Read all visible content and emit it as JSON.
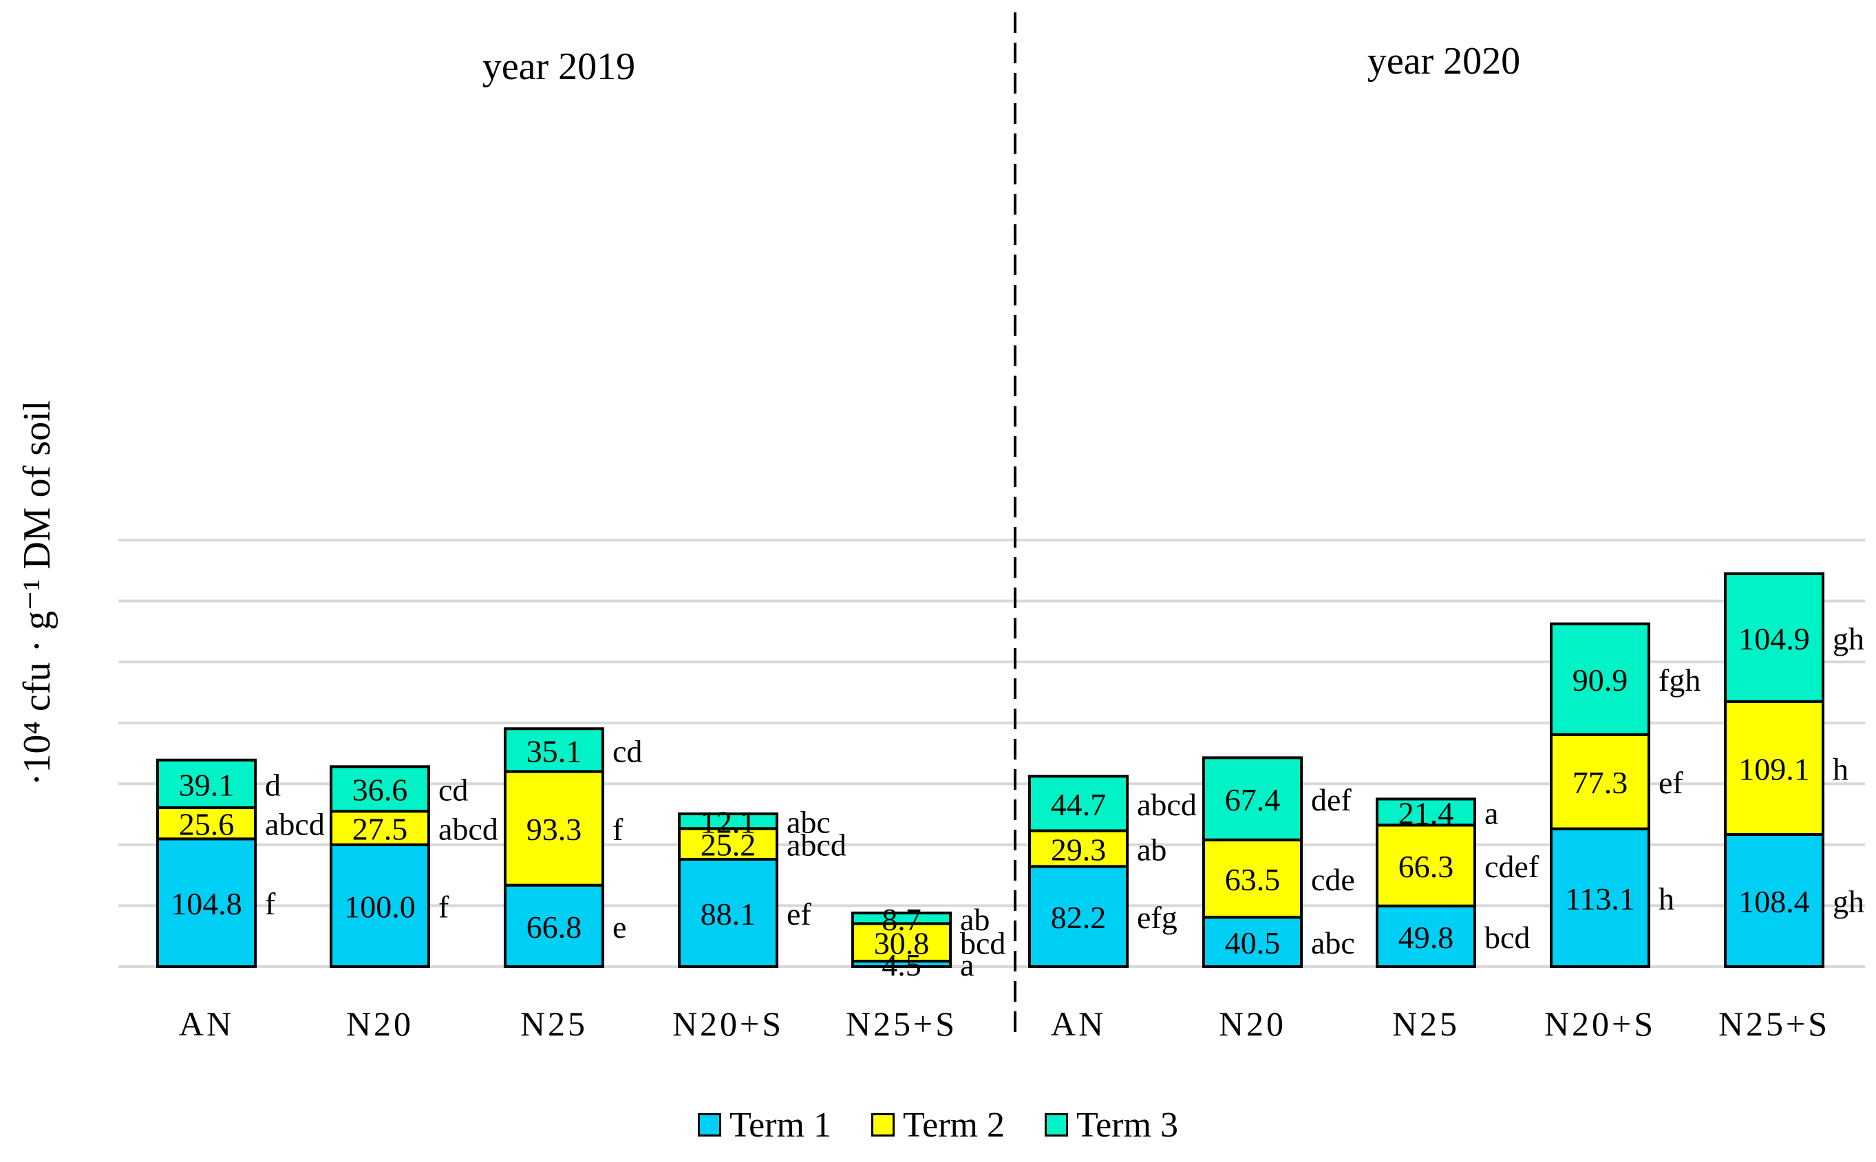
{
  "colors": {
    "term1": "#00CFF5",
    "term2": "#FFFF00",
    "term3": "#00F2C6",
    "grid": "#D9D9D9",
    "outline": "#000000"
  },
  "chart_data": {
    "type": "bar",
    "stacked": true,
    "title": "",
    "ylabel": "·10⁴ cfu · g⁻¹ DM of soil",
    "xlabel": "",
    "ylim": [
      0,
      350
    ],
    "grid": true,
    "legend_position": "bottom",
    "groups": [
      {
        "label": "year 2019",
        "categories": [
          "AN",
          "N20",
          "N25",
          "N20+S",
          "N25+S"
        ]
      },
      {
        "label": "year 2020",
        "categories": [
          "AN",
          "N20",
          "N25",
          "N20+S",
          "N25+S"
        ]
      }
    ],
    "series": [
      {
        "name": "Term 1",
        "values": [
          104.8,
          100.0,
          66.8,
          88.1,
          4.5,
          82.2,
          40.5,
          49.8,
          113.1,
          108.4
        ],
        "value_labels": [
          "104.8",
          "100.0",
          "66.8",
          "88.1",
          "4.5",
          "82.2",
          "40.5",
          "49.8",
          "113.1",
          "108.4"
        ],
        "letters": [
          "f",
          "f",
          "e",
          "ef",
          "a",
          "efg",
          "abc",
          "bcd",
          "h",
          "gh"
        ]
      },
      {
        "name": "Term 2",
        "values": [
          25.6,
          27.5,
          93.3,
          25.2,
          30.8,
          29.3,
          63.5,
          66.3,
          77.3,
          109.1
        ],
        "value_labels": [
          "25.6",
          "27.5",
          "93.3",
          "25.2",
          "30.8",
          "29.3",
          "63.5",
          "66.3",
          "77.3",
          "109.1"
        ],
        "letters": [
          "abcd",
          "abcd",
          "f",
          "abcd",
          "bcd",
          "ab",
          "cde",
          "cdef",
          "ef",
          "h"
        ]
      },
      {
        "name": "Term 3",
        "values": [
          39.1,
          36.6,
          35.1,
          12.1,
          8.7,
          44.7,
          67.4,
          21.4,
          90.9,
          104.9
        ],
        "value_labels": [
          "39.1",
          "36.6",
          "35.1",
          "12.1",
          "8.7",
          "44.7",
          "67.4",
          "21.4",
          "90.9",
          "104.9"
        ],
        "letters": [
          "d",
          "cd",
          "cd",
          "abc",
          "ab",
          "abcd",
          "def",
          "a",
          "fgh",
          "gh"
        ]
      }
    ]
  }
}
